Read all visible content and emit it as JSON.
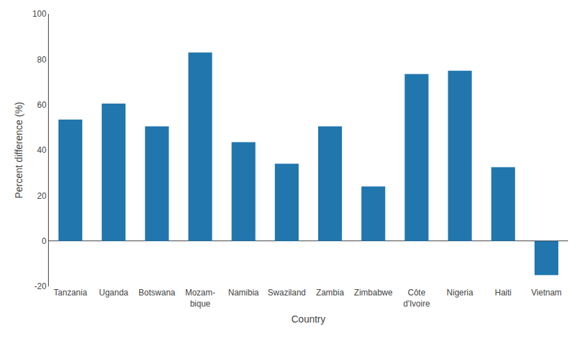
{
  "chart_data": {
    "type": "bar",
    "categories": [
      "Tanzania",
      "Uganda",
      "Botswana",
      "Mozam-\nbique",
      "Namibia",
      "Swaziland",
      "Zambia",
      "Zimbabwe",
      "Côte\nd'Ivoire",
      "Nigeria",
      "Haiti",
      "Vietnam"
    ],
    "values": [
      53.5,
      60.5,
      50.5,
      83.0,
      43.5,
      34.0,
      50.5,
      24.0,
      73.5,
      75.0,
      32.5,
      -15.0
    ],
    "color": "#2176ae",
    "xlabel": "Country",
    "ylabel": "Percent difference (%)",
    "ylim": [
      -20,
      100
    ],
    "yticks": [
      -20,
      0,
      20,
      40,
      60,
      80,
      100
    ],
    "grid": false
  }
}
